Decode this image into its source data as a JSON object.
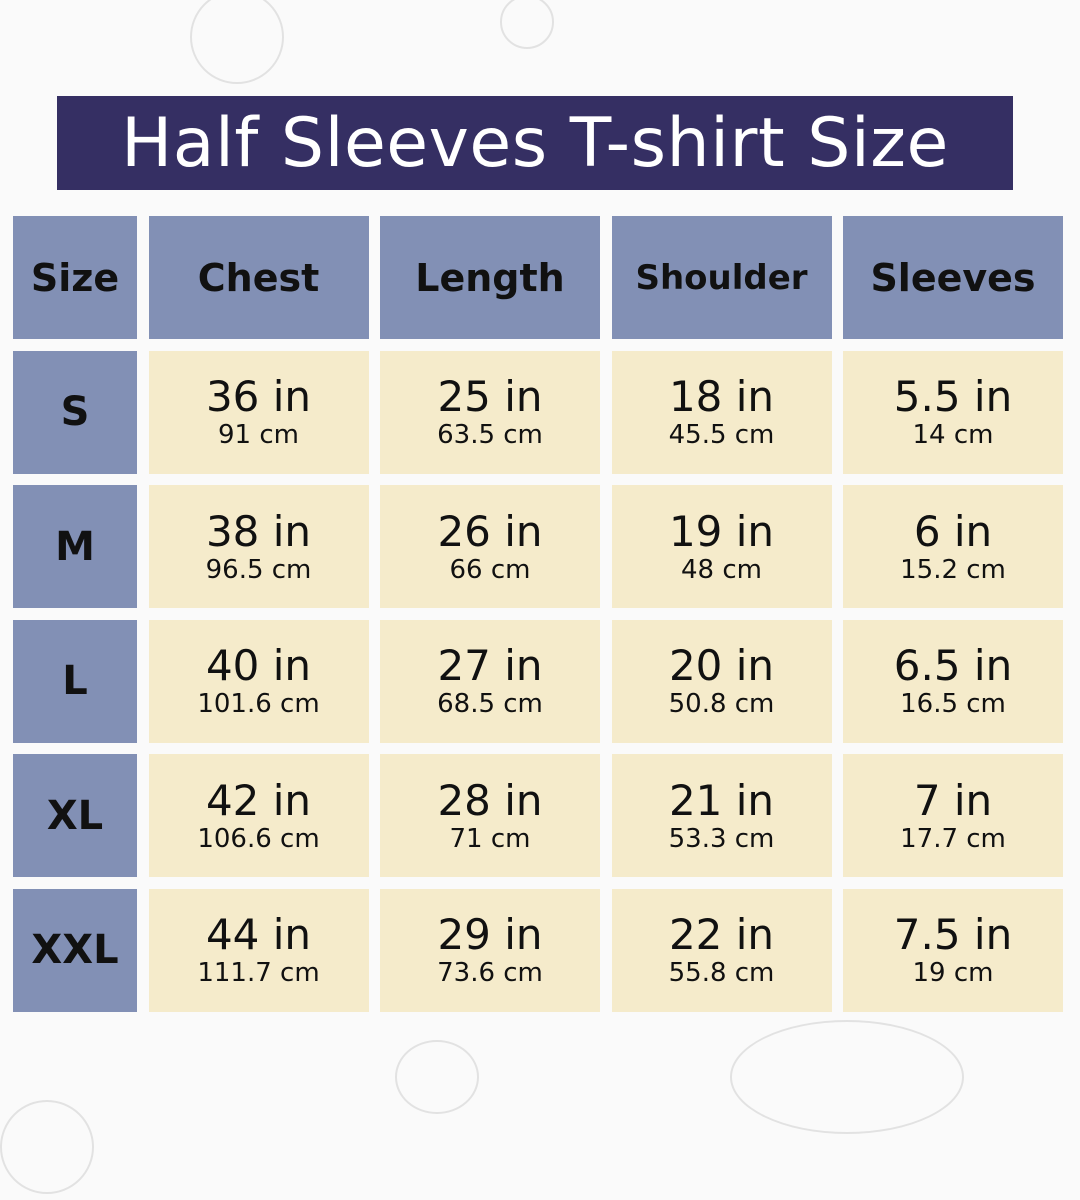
{
  "title": "Half Sleeves T-shirt Size",
  "colors": {
    "title_bg": "#352f63",
    "header_bg": "#8290b5",
    "cell_bg": "#f5ebcb"
  },
  "headers": [
    "Size",
    "Chest",
    "Length",
    "Shoulder",
    "Sleeves"
  ],
  "rows": [
    {
      "size": "S",
      "values": [
        {
          "in": "36 in",
          "cm": "91 cm"
        },
        {
          "in": "25 in",
          "cm": "63.5 cm"
        },
        {
          "in": "18 in",
          "cm": "45.5 cm"
        },
        {
          "in": "5.5 in",
          "cm": "14 cm"
        }
      ]
    },
    {
      "size": "M",
      "values": [
        {
          "in": "38 in",
          "cm": "96.5 cm"
        },
        {
          "in": "26 in",
          "cm": "66 cm"
        },
        {
          "in": "19 in",
          "cm": "48 cm"
        },
        {
          "in": "6 in",
          "cm": "15.2 cm"
        }
      ]
    },
    {
      "size": "L",
      "values": [
        {
          "in": "40 in",
          "cm": "101.6 cm"
        },
        {
          "in": "27 in",
          "cm": "68.5 cm"
        },
        {
          "in": "20 in",
          "cm": "50.8 cm"
        },
        {
          "in": "6.5 in",
          "cm": "16.5 cm"
        }
      ]
    },
    {
      "size": "XL",
      "values": [
        {
          "in": "42 in",
          "cm": "106.6 cm"
        },
        {
          "in": "28 in",
          "cm": "71 cm"
        },
        {
          "in": "21 in",
          "cm": "53.3 cm"
        },
        {
          "in": "7 in",
          "cm": "17.7 cm"
        }
      ]
    },
    {
      "size": "XXL",
      "values": [
        {
          "in": "44 in",
          "cm": "111.7 cm"
        },
        {
          "in": "29 in",
          "cm": "73.6 cm"
        },
        {
          "in": "22 in",
          "cm": "55.8 cm"
        },
        {
          "in": "7.5 in",
          "cm": "19 cm"
        }
      ]
    }
  ]
}
